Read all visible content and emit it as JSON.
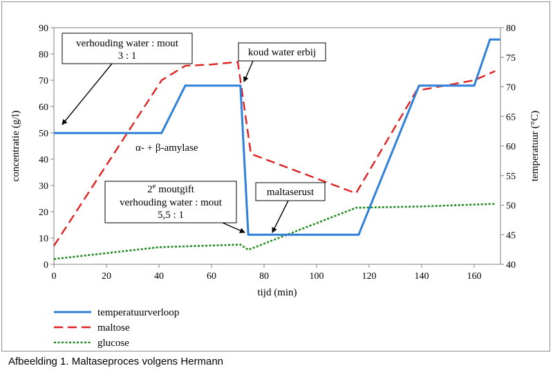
{
  "caption": "Afbeelding 1. Maltaseproces volgens Hermann",
  "chart_data": {
    "type": "line",
    "xlabel": "tijd (min)",
    "ylabel": "concentratie (g/l)",
    "y2label": "temperatuur (°C)",
    "xlim": [
      0,
      170
    ],
    "ylim": [
      0,
      90
    ],
    "y2lim": [
      40,
      80
    ],
    "x_ticks": [
      "0",
      "20",
      "40",
      "60",
      "80",
      "100",
      "120",
      "140",
      "160"
    ],
    "y_ticks": [
      "0",
      "10",
      "20",
      "30",
      "40",
      "50",
      "60",
      "70",
      "80",
      "90"
    ],
    "y2_ticks": [
      "40",
      "45",
      "50",
      "55",
      "60",
      "65",
      "70",
      "75",
      "80"
    ],
    "grid": false,
    "legend_position": "bottom-left",
    "series": [
      {
        "name": "temperatuurverloop",
        "axis": "right",
        "color": "#2e7fd9",
        "style": "solid",
        "points": [
          [
            0,
            62.2
          ],
          [
            41,
            62.2
          ],
          [
            50,
            70.2
          ],
          [
            71,
            70.2
          ],
          [
            74,
            45
          ],
          [
            116,
            45
          ],
          [
            139,
            70.2
          ],
          [
            160,
            70.2
          ],
          [
            166,
            78
          ],
          [
            170,
            78
          ]
        ]
      },
      {
        "name": "maltose",
        "axis": "left",
        "color": "#e02020",
        "style": "dashed",
        "points": [
          [
            0,
            7
          ],
          [
            41,
            70
          ],
          [
            50,
            75.5
          ],
          [
            60,
            76
          ],
          [
            70,
            77
          ],
          [
            75,
            42
          ],
          [
            115,
            27
          ],
          [
            138,
            66
          ],
          [
            160,
            70
          ],
          [
            168,
            73.5
          ]
        ]
      },
      {
        "name": "glucose",
        "axis": "left",
        "color": "#1a8a1a",
        "style": "dotted",
        "points": [
          [
            0,
            2
          ],
          [
            40,
            6.5
          ],
          [
            71,
            7.5
          ],
          [
            74,
            5.5
          ],
          [
            115,
            21.5
          ],
          [
            140,
            22
          ],
          [
            168,
            23
          ]
        ]
      }
    ],
    "annotations": [
      {
        "id": "ratio-3-1",
        "lines": [
          "verhouding water : mout",
          "3 : 1"
        ]
      },
      {
        "id": "cold-water",
        "lines": [
          "koud water erbij"
        ]
      },
      {
        "id": "amylase",
        "lines": [
          "α- + β-amylase"
        ]
      },
      {
        "id": "second-malt",
        "lines": [
          "2e moutgift",
          "verhouding water : mout",
          "5,5 : 1"
        ]
      },
      {
        "id": "maltase-rest",
        "lines": [
          "maltaserust"
        ]
      }
    ]
  }
}
